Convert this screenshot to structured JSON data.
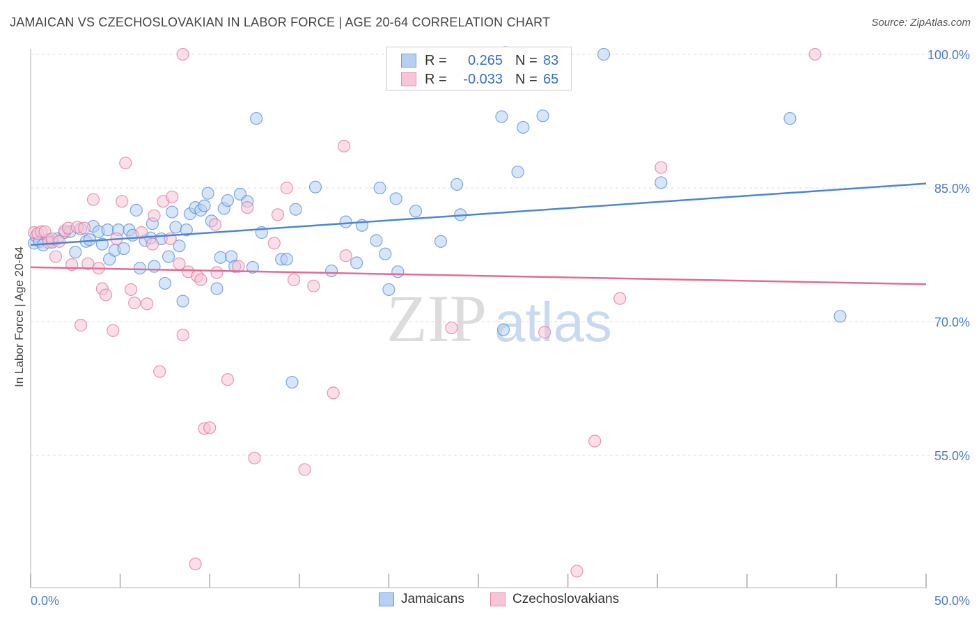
{
  "title": "JAMAICAN VS CZECHOSLOVAKIAN IN LABOR FORCE | AGE 20-64 CORRELATION CHART",
  "source": "Source: ZipAtlas.com",
  "watermark": {
    "zip": "ZIP",
    "atlas": "atlas"
  },
  "legend": {
    "rows": [
      {
        "r_label": "R =",
        "r_value": "0.265",
        "n_label": "N =",
        "n_value": "83",
        "fill": "#b7d0f2",
        "stroke": "#6b9be0"
      },
      {
        "r_label": "R =",
        "r_value": "-0.033",
        "n_label": "N =",
        "n_value": "65",
        "fill": "#f8c5d5",
        "stroke": "#e88aab"
      }
    ]
  },
  "bottom_legend": [
    {
      "label": "Jamaicans",
      "fill": "#b7d0f2",
      "stroke": "#6b9be0"
    },
    {
      "label": "Czechoslovakians",
      "fill": "#f8c5d5",
      "stroke": "#e88aab"
    }
  ],
  "chart_data": {
    "type": "scatter",
    "title": "JAMAICAN VS CZECHOSLOVAKIAN IN LABOR FORCE | AGE 20-64 CORRELATION CHART",
    "xlabel": "",
    "ylabel": "In Labor Force | Age 20-64",
    "xlim": [
      0,
      50
    ],
    "ylim": [
      42,
      102
    ],
    "x_tick_labels": [
      "0.0%",
      "50.0%"
    ],
    "y_ticks": [
      55,
      70,
      85,
      100
    ],
    "y_tick_labels": [
      "55.0%",
      "70.0%",
      "85.0%",
      "100.0%"
    ],
    "grid": true,
    "series": [
      {
        "name": "Jamaicans",
        "color": "#4a86d8",
        "fill": "#b7d0f2",
        "trend": {
          "x": [
            0,
            50
          ],
          "y": [
            78.6,
            85.5
          ]
        },
        "points": [
          [
            0.2,
            78.8
          ],
          [
            0.3,
            79.6
          ],
          [
            0.5,
            79.0
          ],
          [
            0.7,
            78.6
          ],
          [
            1.0,
            79.2
          ],
          [
            1.2,
            78.9
          ],
          [
            1.5,
            79.3
          ],
          [
            1.9,
            80.0
          ],
          [
            2.2,
            80.1
          ],
          [
            2.5,
            77.8
          ],
          [
            2.8,
            80.4
          ],
          [
            3.1,
            79.0
          ],
          [
            3.3,
            79.2
          ],
          [
            3.5,
            80.7
          ],
          [
            3.8,
            80.1
          ],
          [
            4.0,
            78.7
          ],
          [
            4.3,
            80.3
          ],
          [
            4.4,
            77.0
          ],
          [
            4.7,
            78.0
          ],
          [
            4.9,
            80.3
          ],
          [
            5.2,
            78.2
          ],
          [
            5.5,
            80.3
          ],
          [
            5.7,
            79.7
          ],
          [
            5.9,
            82.5
          ],
          [
            6.1,
            76.0
          ],
          [
            6.4,
            79.1
          ],
          [
            6.7,
            79.4
          ],
          [
            6.8,
            81.0
          ],
          [
            6.9,
            76.2
          ],
          [
            7.3,
            79.3
          ],
          [
            7.5,
            74.3
          ],
          [
            7.7,
            77.3
          ],
          [
            7.9,
            82.3
          ],
          [
            8.1,
            80.6
          ],
          [
            8.3,
            78.5
          ],
          [
            8.5,
            72.3
          ],
          [
            8.7,
            80.3
          ],
          [
            8.9,
            82.1
          ],
          [
            9.2,
            82.8
          ],
          [
            9.5,
            82.5
          ],
          [
            9.7,
            83.0
          ],
          [
            9.9,
            84.4
          ],
          [
            10.1,
            81.3
          ],
          [
            10.4,
            73.7
          ],
          [
            10.6,
            77.2
          ],
          [
            10.8,
            82.7
          ],
          [
            11.0,
            83.6
          ],
          [
            11.2,
            77.3
          ],
          [
            11.4,
            76.2
          ],
          [
            11.7,
            84.3
          ],
          [
            12.1,
            83.5
          ],
          [
            12.4,
            76.1
          ],
          [
            12.6,
            92.8
          ],
          [
            12.9,
            80.0
          ],
          [
            14.0,
            77.0
          ],
          [
            14.3,
            77.0
          ],
          [
            14.6,
            63.2
          ],
          [
            14.8,
            82.6
          ],
          [
            15.9,
            85.1
          ],
          [
            16.8,
            75.7
          ],
          [
            17.6,
            81.2
          ],
          [
            18.2,
            76.6
          ],
          [
            18.5,
            80.8
          ],
          [
            19.3,
            79.1
          ],
          [
            19.5,
            85.0
          ],
          [
            19.8,
            77.6
          ],
          [
            20.0,
            73.6
          ],
          [
            20.4,
            83.8
          ],
          [
            20.5,
            75.6
          ],
          [
            21.5,
            82.4
          ],
          [
            22.9,
            79.0
          ],
          [
            23.8,
            85.4
          ],
          [
            24.0,
            82.0
          ],
          [
            26.3,
            93.0
          ],
          [
            26.4,
            69.1
          ],
          [
            27.2,
            86.8
          ],
          [
            27.5,
            91.8
          ],
          [
            28.6,
            93.1
          ],
          [
            35.2,
            85.6
          ],
          [
            42.4,
            92.8
          ],
          [
            45.2,
            70.6
          ],
          [
            26.5,
            100.2
          ],
          [
            32.0,
            100.0
          ]
        ]
      },
      {
        "name": "Czechoslovakians",
        "color": "#e06c96",
        "fill": "#f8c5d5",
        "trend": {
          "x": [
            0,
            50
          ],
          "y": [
            76.1,
            74.2
          ]
        },
        "points": [
          [
            0.2,
            80.0
          ],
          [
            0.4,
            79.9
          ],
          [
            0.6,
            80.1
          ],
          [
            0.8,
            80.1
          ],
          [
            1.0,
            78.9
          ],
          [
            1.2,
            79.3
          ],
          [
            1.4,
            77.3
          ],
          [
            1.6,
            79.0
          ],
          [
            1.9,
            80.2
          ],
          [
            2.1,
            80.5
          ],
          [
            2.3,
            76.4
          ],
          [
            2.6,
            80.6
          ],
          [
            2.8,
            69.6
          ],
          [
            3.0,
            80.5
          ],
          [
            3.2,
            76.5
          ],
          [
            3.5,
            83.7
          ],
          [
            3.8,
            76.0
          ],
          [
            4.0,
            73.7
          ],
          [
            4.2,
            73.0
          ],
          [
            4.6,
            69.0
          ],
          [
            4.8,
            79.3
          ],
          [
            5.1,
            83.5
          ],
          [
            5.3,
            87.8
          ],
          [
            5.6,
            73.6
          ],
          [
            5.8,
            72.1
          ],
          [
            6.2,
            80.0
          ],
          [
            6.5,
            72.0
          ],
          [
            6.8,
            78.7
          ],
          [
            6.9,
            81.9
          ],
          [
            7.2,
            64.4
          ],
          [
            7.4,
            83.5
          ],
          [
            7.8,
            79.3
          ],
          [
            7.9,
            84.0
          ],
          [
            8.3,
            76.5
          ],
          [
            8.5,
            68.5
          ],
          [
            8.8,
            75.6
          ],
          [
            9.2,
            42.8
          ],
          [
            9.3,
            75.1
          ],
          [
            9.5,
            74.7
          ],
          [
            9.7,
            58.0
          ],
          [
            10.0,
            58.1
          ],
          [
            10.3,
            80.9
          ],
          [
            10.4,
            75.5
          ],
          [
            11.0,
            63.5
          ],
          [
            11.6,
            76.2
          ],
          [
            12.1,
            82.8
          ],
          [
            12.5,
            54.7
          ],
          [
            13.6,
            78.8
          ],
          [
            13.8,
            82.0
          ],
          [
            14.3,
            85.0
          ],
          [
            14.7,
            74.7
          ],
          [
            15.3,
            53.4
          ],
          [
            15.8,
            74.0
          ],
          [
            16.9,
            62.0
          ],
          [
            17.5,
            89.7
          ],
          [
            17.6,
            77.4
          ],
          [
            23.5,
            69.3
          ],
          [
            26.5,
            99.8
          ],
          [
            28.7,
            68.8
          ],
          [
            30.5,
            42.0
          ],
          [
            31.5,
            56.6
          ],
          [
            32.9,
            72.6
          ],
          [
            35.2,
            87.3
          ],
          [
            43.8,
            100.0
          ],
          [
            8.5,
            100.0
          ]
        ]
      }
    ]
  }
}
